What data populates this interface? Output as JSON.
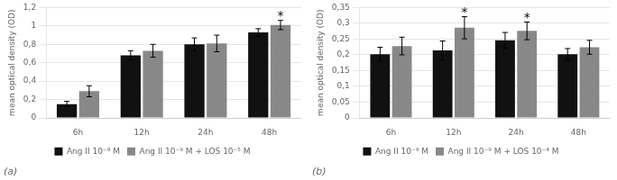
{
  "chart_data": [
    {
      "type": "bar",
      "title": "(a)",
      "categories": [
        "6h",
        "12h",
        "24h",
        "48h"
      ],
      "series": [
        {
          "name": "Ang II 10⁻⁹ M",
          "color": "#111111",
          "values": [
            0.15,
            0.68,
            0.8,
            0.93
          ],
          "errors": [
            0.03,
            0.05,
            0.07,
            0.04
          ]
        },
        {
          "name": "Ang II 10⁻⁹ M + LOS 10⁻⁵ M",
          "color": "#888888",
          "values": [
            0.29,
            0.73,
            0.81,
            1.01
          ],
          "errors": [
            0.06,
            0.07,
            0.09,
            0.05
          ]
        }
      ],
      "ylabel": "mean optical density (OD)",
      "ylim": [
        0,
        1.2
      ],
      "yticks": [
        0,
        {
          "value": 0.2,
          "label": "0,2"
        },
        {
          "value": 0.4,
          "label": "0,4"
        },
        {
          "value": 0.6,
          "label": "0,6"
        },
        {
          "value": 0.8,
          "label": "0,8"
        },
        1,
        {
          "value": 1.2,
          "label": "1,2"
        }
      ],
      "annotations": [
        {
          "text": "*",
          "category": "48h",
          "series": "Ang II 10⁻⁹ M + LOS 10⁻⁵ M"
        }
      ],
      "grid": true,
      "legend": "bottom"
    },
    {
      "type": "bar",
      "title": "(b)",
      "categories": [
        "6h",
        "12h",
        "24h",
        "48h"
      ],
      "series": [
        {
          "name": "Ang II 10⁻⁹ M",
          "color": "#111111",
          "values": [
            0.202,
            0.214,
            0.246,
            0.202
          ],
          "errors": [
            0.022,
            0.03,
            0.025,
            0.018
          ]
        },
        {
          "name": "Ang II 10⁻⁹ M + LOS 10⁻⁴ M",
          "color": "#888888",
          "values": [
            0.228,
            0.286,
            0.276,
            0.224
          ],
          "errors": [
            0.028,
            0.035,
            0.028,
            0.022
          ]
        }
      ],
      "ylabel": "mean optical density (OD)",
      "ylim": [
        0,
        0.35
      ],
      "yticks": [
        0,
        {
          "value": 0.05,
          "label": "0,05"
        },
        {
          "value": 0.1,
          "label": "0,1"
        },
        {
          "value": 0.15,
          "label": "0,15"
        },
        {
          "value": 0.2,
          "label": "0,2"
        },
        {
          "value": 0.25,
          "label": "0,25"
        },
        {
          "value": 0.3,
          "label": "0,3"
        },
        {
          "value": 0.35,
          "label": "0,35"
        }
      ],
      "annotations": [
        {
          "text": "*",
          "category": "12h",
          "series": "Ang II 10⁻⁹ M + LOS 10⁻⁴ M"
        },
        {
          "text": "*",
          "category": "24h",
          "series": "Ang II 10⁻⁹ M + LOS 10⁻⁴ M"
        }
      ],
      "grid": true,
      "legend": "bottom"
    }
  ]
}
